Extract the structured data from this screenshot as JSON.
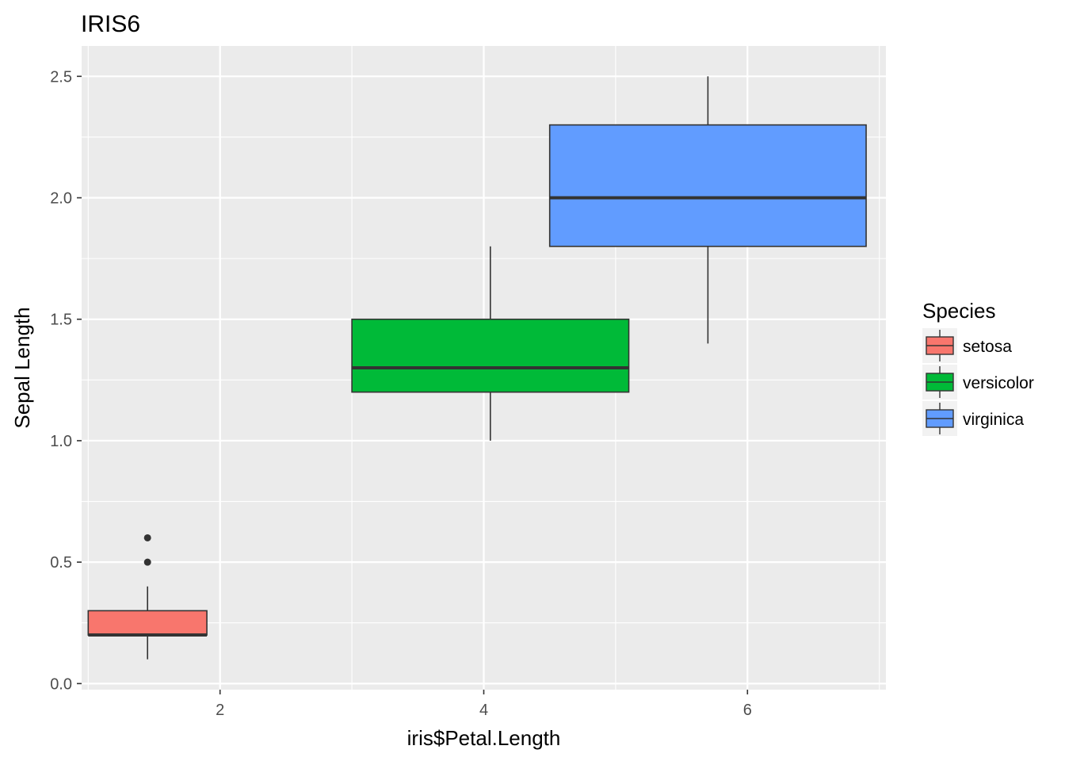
{
  "chart_data": {
    "type": "boxplot",
    "title": "IRIS6",
    "xlabel": "iris$Petal.Length",
    "ylabel": "Sepal Length",
    "xlim": [
      0.95,
      7.05
    ],
    "ylim": [
      -0.025,
      2.625
    ],
    "x_ticks": [
      2,
      4,
      6
    ],
    "x_tick_labels": [
      "2",
      "4",
      "6"
    ],
    "y_ticks": [
      0.0,
      0.5,
      1.0,
      1.5,
      2.0,
      2.5
    ],
    "y_tick_labels": [
      "0.0",
      "0.5",
      "1.0",
      "1.5",
      "2.0",
      "2.5"
    ],
    "grid": true,
    "legend": {
      "title": "Species",
      "position": "right",
      "entries": [
        "setosa",
        "versicolor",
        "virginica"
      ]
    },
    "series": [
      {
        "name": "setosa",
        "color": "#F8766D",
        "x_range": [
          1.0,
          1.9
        ],
        "lower_whisker": 0.1,
        "q1": 0.2,
        "median": 0.2,
        "q3": 0.3,
        "upper_whisker": 0.4,
        "outliers": [
          0.5,
          0.6
        ]
      },
      {
        "name": "versicolor",
        "color": "#00BA38",
        "x_range": [
          3.0,
          5.1
        ],
        "lower_whisker": 1.0,
        "q1": 1.2,
        "median": 1.3,
        "q3": 1.5,
        "upper_whisker": 1.8,
        "outliers": []
      },
      {
        "name": "virginica",
        "color": "#619CFF",
        "x_range": [
          4.5,
          6.9
        ],
        "lower_whisker": 1.4,
        "q1": 1.8,
        "median": 2.0,
        "q3": 2.3,
        "upper_whisker": 2.5,
        "outliers": []
      }
    ],
    "panel_background": "#EBEBEB",
    "grid_color": "#FFFFFF",
    "outline_color": "#333333"
  }
}
